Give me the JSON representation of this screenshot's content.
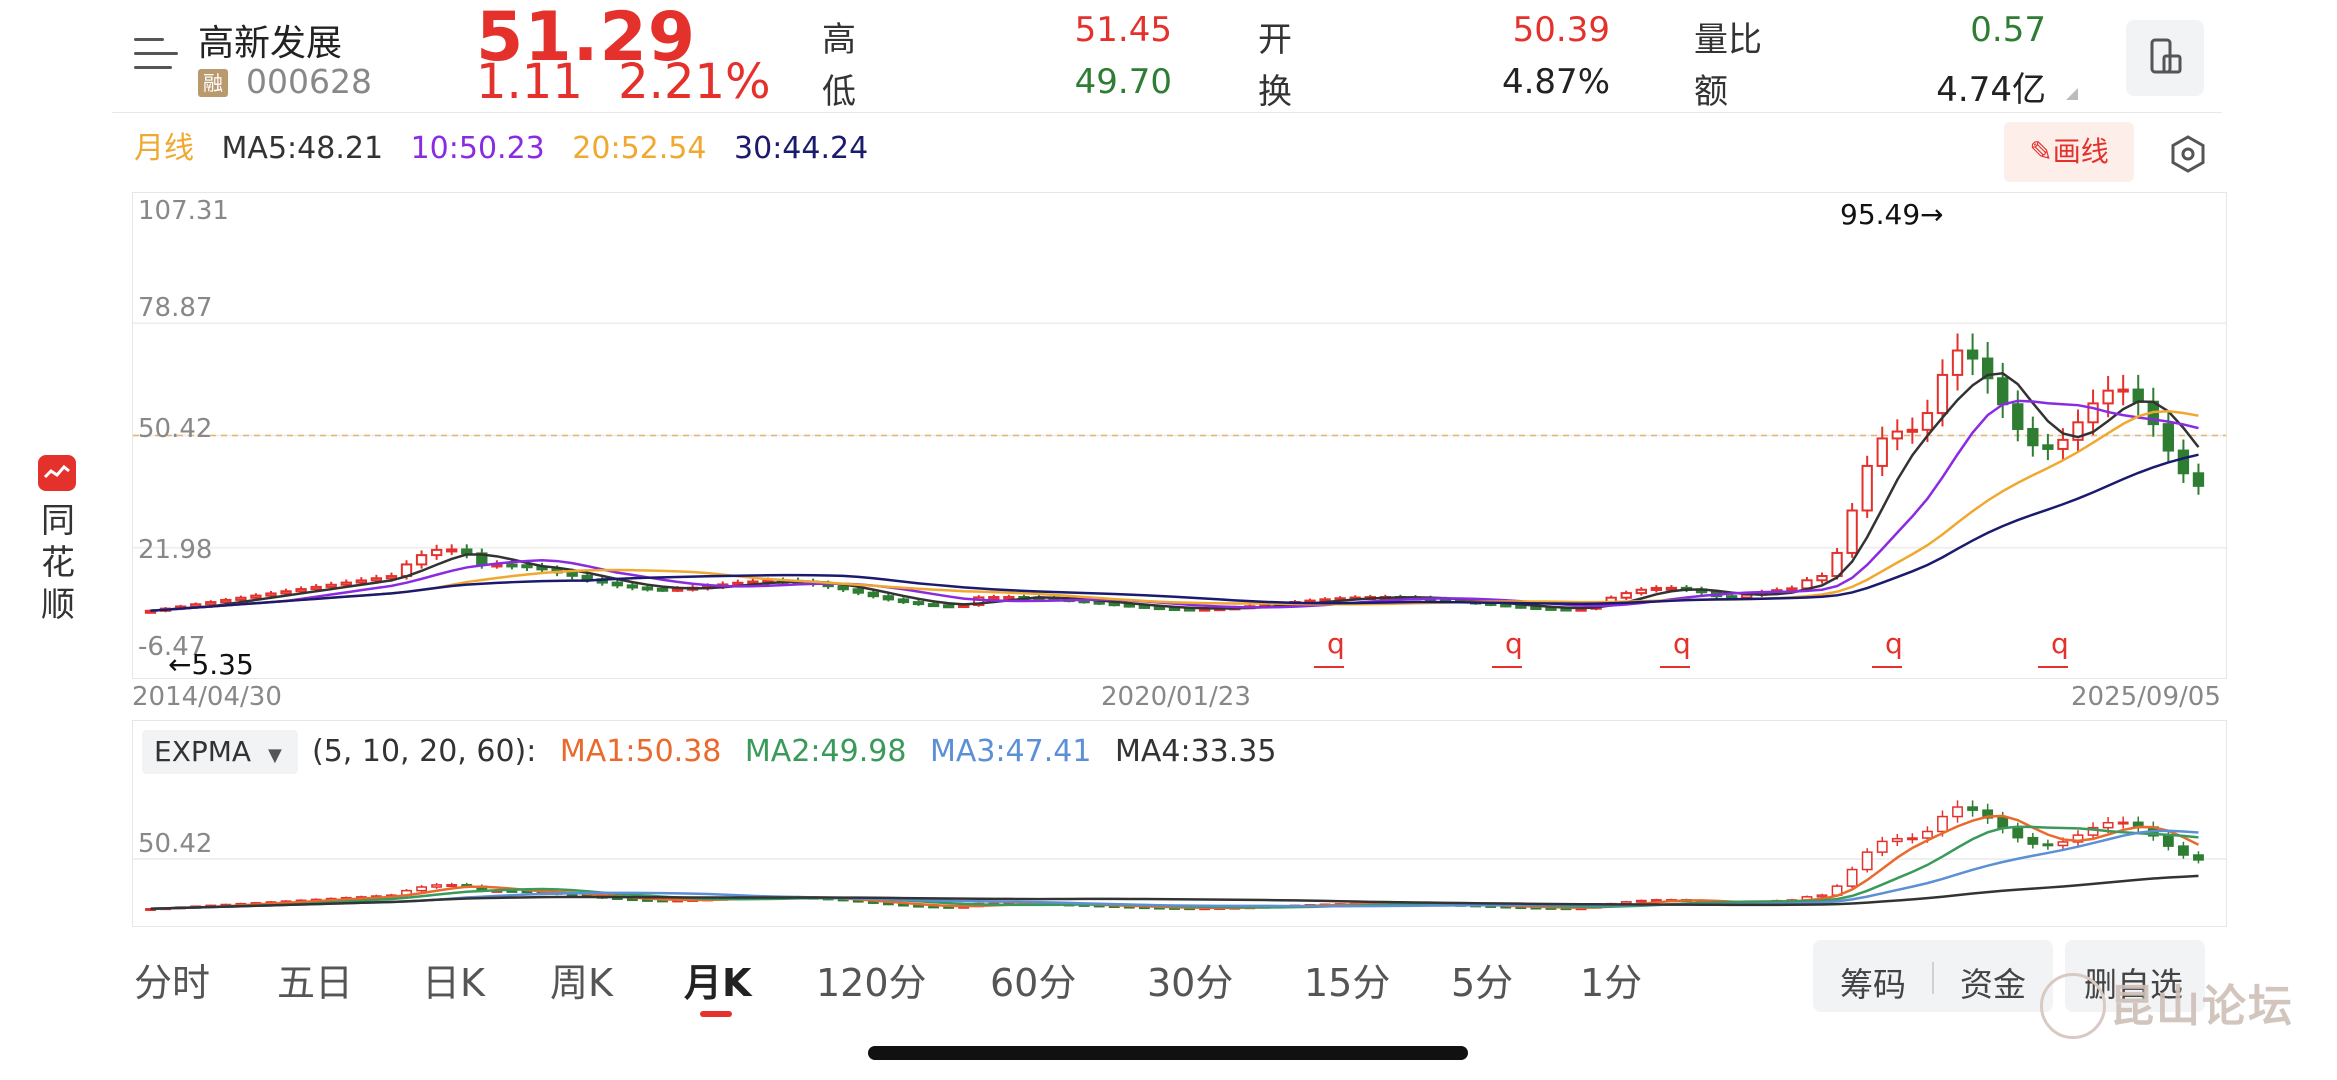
{
  "stock": {
    "name": "高新发展",
    "badge": "融",
    "code": "000628",
    "price": "51.29",
    "change": "1.11",
    "change_pct": "2.21%"
  },
  "quote": {
    "high_label": "高",
    "high_value": "51.45",
    "low_label": "低",
    "low_value": "49.70",
    "open_label": "开",
    "open_value": "50.39",
    "turnover_label": "换",
    "turnover_value": "4.87%",
    "volume_ratio_label": "量比",
    "volume_ratio_value": "0.57",
    "amount_label": "额",
    "amount_value": "4.74亿"
  },
  "ma_legend": {
    "period": "月线",
    "ma5": "MA5:48.21",
    "ma10": "10:50.23",
    "ma20": "20:52.54",
    "ma30": "30:44.24"
  },
  "draw_button": "画线",
  "colors": {
    "up": "#e4312b",
    "down": "#2e7d32",
    "ma5": "#333333",
    "ma10": "#8a2be2",
    "ma20": "#f0a830",
    "ma30": "#1a1a6e",
    "expma1": "#e96a2c",
    "expma2": "#3a9a5a",
    "expma3": "#5b8fd6",
    "expma4": "#333333"
  },
  "chart_data": [
    {
      "type": "candlestick",
      "y_ticks": [
        "107.31",
        "78.87",
        "50.42",
        "21.98",
        "-6.47"
      ],
      "ylim": [
        -6.47,
        107.31
      ],
      "x_labels": [
        "2014/04/30",
        "2020/01/23",
        "2025/09/05"
      ],
      "max_marker": "95.49→",
      "min_marker": "←5.35",
      "reference_line": 50.42,
      "event_marker": "q"
    },
    {
      "type": "candlestick",
      "indicator": "EXPMA",
      "params": "(5, 10, 20, 60):",
      "ma1": "MA1:50.38",
      "ma2": "MA2:49.98",
      "ma3": "MA3:47.41",
      "ma4": "MA4:33.35",
      "y_ticks": [
        "50.42"
      ]
    }
  ],
  "brand": {
    "text": "同花顺"
  },
  "tabs": [
    {
      "label": "分时"
    },
    {
      "label": "五日"
    },
    {
      "label": "日K"
    },
    {
      "label": "周K"
    },
    {
      "label": "月K"
    },
    {
      "label": "120分"
    },
    {
      "label": "60分"
    },
    {
      "label": "30分"
    },
    {
      "label": "15分"
    },
    {
      "label": "5分"
    },
    {
      "label": "1分"
    }
  ],
  "buttons": {
    "chips": "筹码",
    "funds": "资金",
    "delete_watch": "删自选"
  },
  "watermark": "昆山论坛"
}
